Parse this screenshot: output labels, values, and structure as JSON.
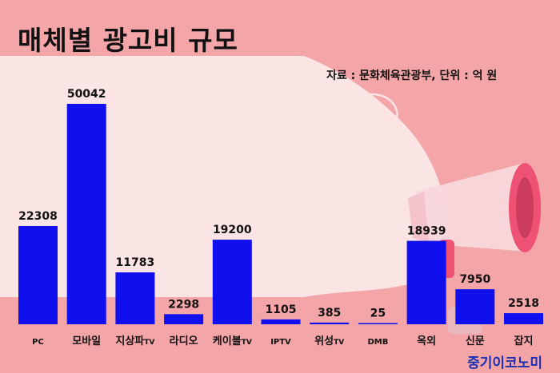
{
  "title": "매체별 광고비 규모",
  "source": "자료 : 문화체육관광부, 단위 : 억 원",
  "brand": "중기이코노미",
  "colors": {
    "bar": "#1010ee",
    "background": "#f3a5a7",
    "panel": "#fbe4e4"
  },
  "chart_data": {
    "type": "bar",
    "title": "매체별 광고비 규모",
    "xlabel": "",
    "ylabel": "",
    "unit": "억 원",
    "grid": false,
    "categories": [
      {
        "main": "PC",
        "suffix": ""
      },
      {
        "main": "모바일",
        "suffix": ""
      },
      {
        "main": "지상파",
        "suffix": "TV"
      },
      {
        "main": "라디오",
        "suffix": ""
      },
      {
        "main": "케이블",
        "suffix": "TV"
      },
      {
        "main": "IPTV",
        "suffix": ""
      },
      {
        "main": "위성",
        "suffix": "TV"
      },
      {
        "main": "DMB",
        "suffix": ""
      },
      {
        "main": "옥외",
        "suffix": ""
      },
      {
        "main": "신문",
        "suffix": ""
      },
      {
        "main": "잡지",
        "suffix": ""
      }
    ],
    "values": [
      22308,
      50042,
      11783,
      2298,
      19200,
      1105,
      385,
      25,
      18939,
      7950,
      2518
    ],
    "ylim": [
      0,
      50042
    ]
  }
}
